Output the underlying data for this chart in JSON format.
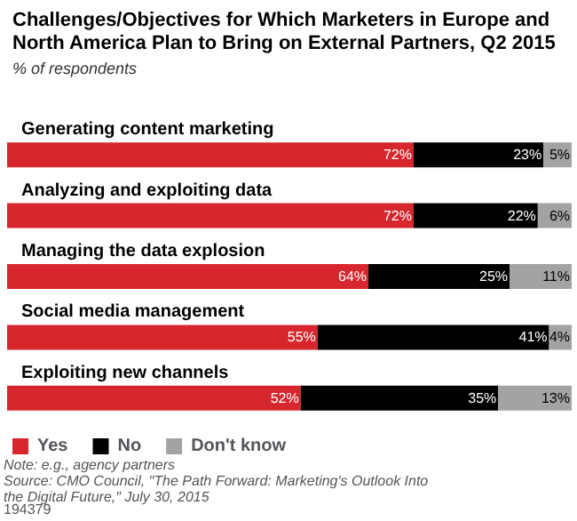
{
  "chart_data": {
    "type": "bar",
    "orientation": "horizontal",
    "stacked": true,
    "xlim": [
      0,
      100
    ],
    "title": "Challenges/Objectives for Which Marketers in Europe and North America Plan to Bring on External Partners, Q2 2015",
    "subtitle": "% of respondents",
    "categories": [
      "Generating content marketing",
      "Analyzing and exploiting data",
      "Managing the data explosion",
      "Social media management",
      "Exploiting new channels"
    ],
    "series": [
      {
        "name": "Yes",
        "color": "#d7262d",
        "values": [
          72,
          72,
          64,
          55,
          52
        ],
        "value_labels": [
          "72%",
          "72%",
          "64%",
          "55%",
          "52%"
        ]
      },
      {
        "name": "No",
        "color": "#000000",
        "values": [
          23,
          22,
          25,
          41,
          35
        ],
        "value_labels": [
          "23%",
          "22%",
          "25%",
          "41%",
          "35%"
        ]
      },
      {
        "name": "Don't know",
        "color": "#a3a3a3",
        "values": [
          5,
          6,
          11,
          4,
          13
        ],
        "value_labels": [
          "5%",
          "6%",
          "11%",
          "4%",
          "13%"
        ]
      }
    ],
    "legend": "bottom left",
    "annotations": [
      "Note: e.g., agency partners",
      "Source: CMO Council, \"The Path Forward: Marketing's Outlook Into the Digital Future,\" July 30, 2015",
      "194379"
    ]
  }
}
